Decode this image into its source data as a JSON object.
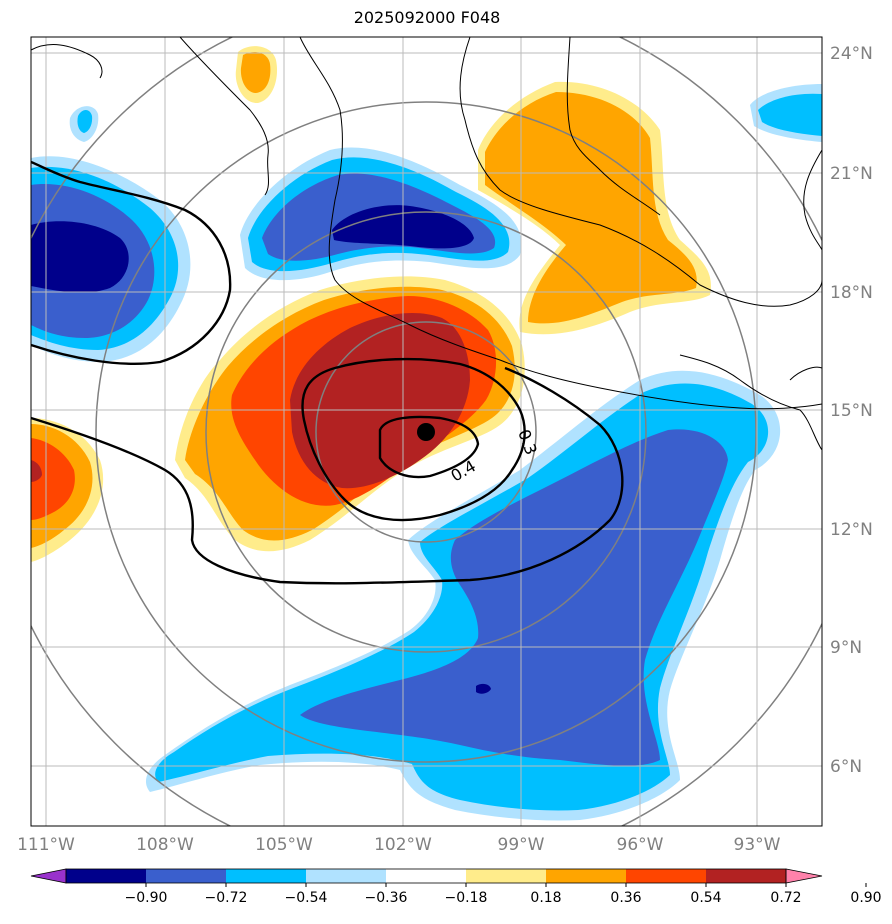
{
  "title": "2025092000 F048",
  "axes": {
    "lon_labels": [
      "111°W",
      "108°W",
      "105°W",
      "102°W",
      "99°W",
      "96°W",
      "93°W"
    ],
    "lat_labels": [
      "24°N",
      "21°N",
      "18°N",
      "15°N",
      "12°N",
      "9°N",
      "6°N"
    ]
  },
  "contours": {
    "labels": [
      "0.3",
      "0.4"
    ]
  },
  "colorbar": {
    "levels": [
      "−0.90",
      "−0.72",
      "−0.54",
      "−0.36",
      "−0.18",
      "0.18",
      "0.36",
      "0.54",
      "0.72",
      "0.90"
    ],
    "colors": [
      "#9932cc",
      "#00008b",
      "#3a5fcd",
      "#00bfff",
      "#b0e2ff",
      "#ffffff",
      "#ffec8b",
      "#ffa500",
      "#ff4500",
      "#b22222",
      "#ff82ab"
    ]
  },
  "storm_center": {
    "lon": -101.5,
    "lat": 14.5
  },
  "colors": {
    "neg_dark": "#00008b",
    "neg_mid": "#3a5fcd",
    "neg_light": "#00bfff",
    "neg_pale": "#b0e2ff",
    "pos_pale": "#ffec8b",
    "pos_light": "#ffa500",
    "pos_mid": "#ff4500",
    "pos_dark": "#b22222"
  }
}
